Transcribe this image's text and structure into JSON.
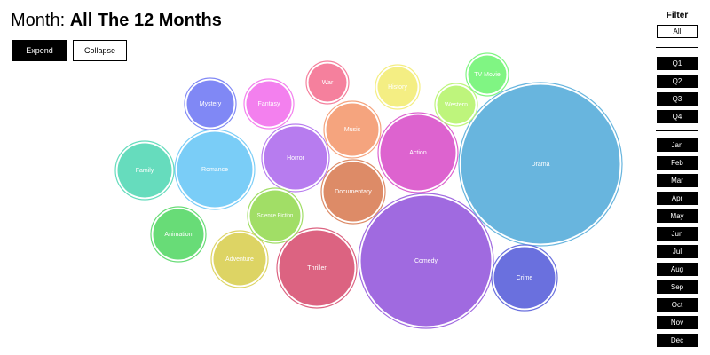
{
  "header": {
    "month_prefix": "Month:",
    "month_value": "All The 12 Months"
  },
  "controls": {
    "expend_label": "Expend",
    "collapse_label": "Collapse"
  },
  "filter": {
    "title": "Filter",
    "all_label": "All",
    "quarters": [
      "Q1",
      "Q2",
      "Q3",
      "Q4"
    ],
    "months": [
      "Jan",
      "Feb",
      "Mar",
      "Apr",
      "May",
      "Jun",
      "Jul",
      "Aug",
      "Sep",
      "Oct",
      "Nov",
      "Dec"
    ]
  },
  "chart_data": {
    "type": "bubble",
    "bubbles": [
      {
        "label": "Drama",
        "color": "#68b5de"
      },
      {
        "label": "Comedy",
        "color": "#a06ae0"
      },
      {
        "label": "Action",
        "color": "#dd63cf"
      },
      {
        "label": "Thriller",
        "color": "#dc6381"
      },
      {
        "label": "Romance",
        "color": "#7acdf7"
      },
      {
        "label": "Horror",
        "color": "#b77cef"
      },
      {
        "label": "Documentary",
        "color": "#dd8b67"
      },
      {
        "label": "Crime",
        "color": "#6a70de"
      },
      {
        "label": "Music",
        "color": "#f5a47e"
      },
      {
        "label": "Adventure",
        "color": "#ddd464"
      },
      {
        "label": "Family",
        "color": "#66dcbd"
      },
      {
        "label": "Science Fiction",
        "color": "#a1de66"
      },
      {
        "label": "Animation",
        "color": "#68dc77"
      },
      {
        "label": "Mystery",
        "color": "#8088f5"
      },
      {
        "label": "Fantasy",
        "color": "#f380ee"
      },
      {
        "label": "History",
        "color": "#f4ee83"
      },
      {
        "label": "Western",
        "color": "#bef57c"
      },
      {
        "label": "War",
        "color": "#f5809d"
      },
      {
        "label": "TV Movie",
        "color": "#80f583"
      }
    ]
  }
}
